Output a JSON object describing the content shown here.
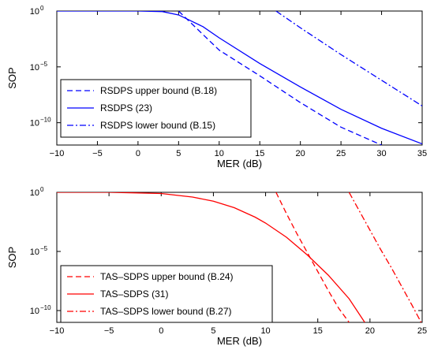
{
  "chart_data": [
    {
      "type": "line",
      "xlabel": "MER (dB)",
      "ylabel": "SOP",
      "xlim": [
        -10,
        35
      ],
      "ylim_log10": [
        -12,
        0
      ],
      "y_scale": "log",
      "x_ticks": [
        -10,
        -5,
        0,
        5,
        10,
        15,
        20,
        25,
        30,
        35
      ],
      "y_ticks_exponents": [
        0,
        -5,
        -10
      ],
      "y_tick_base": "10",
      "grid": false,
      "legend_position": "bottom-left",
      "series": [
        {
          "name": "RSDPS upper bound (B.18)",
          "color": "#0000ff",
          "style": "dashed",
          "points": [
            [
              5,
              0
            ],
            [
              10,
              -3.5
            ],
            [
              15,
              -5.8
            ],
            [
              20,
              -8.2
            ],
            [
              25,
              -10.4
            ],
            [
              30,
              -12
            ]
          ]
        },
        {
          "name": "RSDPS (23)",
          "color": "#0000ff",
          "style": "solid",
          "points": [
            [
              -10,
              0
            ],
            [
              0,
              0
            ],
            [
              3,
              -0.05
            ],
            [
              5,
              -0.35
            ],
            [
              8,
              -1.4
            ],
            [
              10,
              -2.4
            ],
            [
              15,
              -4.7
            ],
            [
              20,
              -6.8
            ],
            [
              25,
              -8.8
            ],
            [
              30,
              -10.5
            ],
            [
              35,
              -11.9
            ]
          ]
        },
        {
          "name": "RSDPS lower bound (B.15)",
          "color": "#0000ff",
          "style": "dashdot",
          "points": [
            [
              17,
              0
            ],
            [
              20,
              -1.5
            ],
            [
              25,
              -3.9
            ],
            [
              30,
              -6.2
            ],
            [
              35,
              -8.5
            ]
          ]
        }
      ]
    },
    {
      "type": "line",
      "xlabel": "MER (dB)",
      "ylabel": "SOP",
      "xlim": [
        -10,
        25
      ],
      "ylim_log10": [
        -11,
        0
      ],
      "y_scale": "log",
      "x_ticks": [
        -10,
        -5,
        0,
        5,
        10,
        15,
        20,
        25
      ],
      "y_ticks_exponents": [
        0,
        -5,
        -10
      ],
      "y_tick_base": "10",
      "grid": false,
      "legend_position": "bottom-left",
      "series": [
        {
          "name": "TAS–SDPS upper bound (B.24)",
          "color": "#ff0000",
          "style": "dashed",
          "points": [
            [
              11,
              0
            ],
            [
              12,
              -1.8
            ],
            [
              13,
              -3.5
            ],
            [
              14,
              -5.1
            ],
            [
              15,
              -6.7
            ],
            [
              16,
              -8.3
            ],
            [
              17,
              -9.8
            ],
            [
              18,
              -11
            ]
          ]
        },
        {
          "name": "TAS–SDPS (31)",
          "color": "#ff0000",
          "style": "solid",
          "points": [
            [
              -10,
              0
            ],
            [
              -5,
              0
            ],
            [
              0,
              -0.1
            ],
            [
              3,
              -0.4
            ],
            [
              5,
              -0.75
            ],
            [
              7,
              -1.3
            ],
            [
              9,
              -2.1
            ],
            [
              10,
              -2.6
            ],
            [
              12,
              -3.8
            ],
            [
              14,
              -5.3
            ],
            [
              16,
              -7.0
            ],
            [
              18,
              -9.0
            ],
            [
              19.5,
              -11
            ]
          ]
        },
        {
          "name": "TAS–SDPS lower bound (B.27)",
          "color": "#ff0000",
          "style": "dashdot",
          "points": [
            [
              18,
              0
            ],
            [
              19,
              -1.6
            ],
            [
              20,
              -3.2
            ],
            [
              21,
              -4.8
            ],
            [
              22,
              -6.3
            ],
            [
              23,
              -7.9
            ],
            [
              24,
              -9.5
            ],
            [
              24.9,
              -11
            ]
          ]
        }
      ]
    }
  ]
}
